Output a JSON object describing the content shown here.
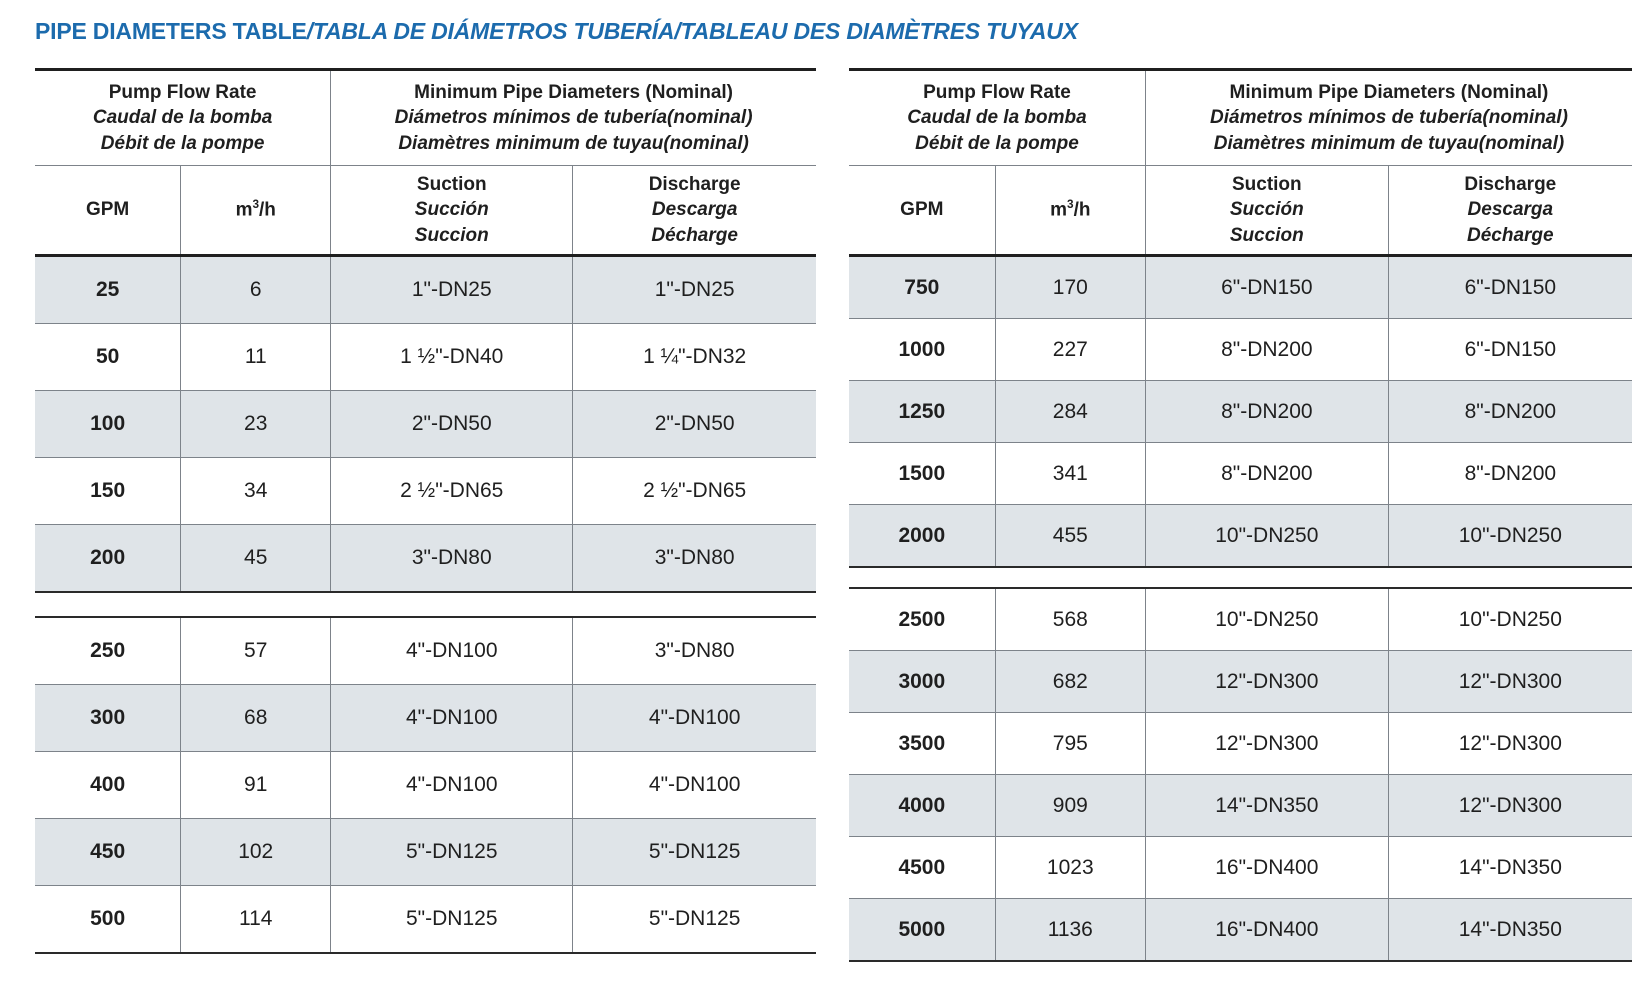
{
  "title": {
    "main": "PIPE DIAMETERS TABLE",
    "alt": "/TABLA DE DIÁMETROS TUBERÍA/TABLEAU DES DIAMÈTRES TUYAUX"
  },
  "colors": {
    "title_blue": "#1c6bad",
    "row_shade": "#dfe4e8",
    "grid_line": "#7d838a",
    "border_dark": "#1f1f1f",
    "text": "#1f1f1f"
  },
  "header": {
    "flow_en": "Pump Flow Rate",
    "flow_es": "Caudal de la bomba",
    "flow_fr": "Débit de la pompe",
    "diam_en": "Minimum Pipe Diameters (Nominal)",
    "diam_es": "Diámetros mínimos de tubería(nominal)",
    "diam_fr": "Diamètres minimum de tuyau(nominal)",
    "gpm": "GPM",
    "m3h": {
      "base": "m",
      "sup": "3",
      "rest": "/h"
    },
    "suction_en": "Suction",
    "suction_es": "Succión",
    "suction_fr": "Succion",
    "discharge_en": "Discharge",
    "discharge_es": "Descarga",
    "discharge_fr": "Décharge"
  },
  "left": {
    "s1": [
      {
        "gpm": "25",
        "m3h": "6",
        "suction": "1\"-DN25",
        "discharge": "1\"-DN25"
      },
      {
        "gpm": "50",
        "m3h": "11",
        "suction": "1 ½\"-DN40",
        "discharge": "1 ¼\"-DN32"
      },
      {
        "gpm": "100",
        "m3h": "23",
        "suction": "2\"-DN50",
        "discharge": "2\"-DN50"
      },
      {
        "gpm": "150",
        "m3h": "34",
        "suction": "2 ½\"-DN65",
        "discharge": "2 ½\"-DN65"
      },
      {
        "gpm": "200",
        "m3h": "45",
        "suction": "3\"-DN80",
        "discharge": "3\"-DN80"
      }
    ],
    "s2": [
      {
        "gpm": "250",
        "m3h": "57",
        "suction": "4\"-DN100",
        "discharge": "3\"-DN80"
      },
      {
        "gpm": "300",
        "m3h": "68",
        "suction": "4\"-DN100",
        "discharge": "4\"-DN100"
      },
      {
        "gpm": "400",
        "m3h": "91",
        "suction": "4\"-DN100",
        "discharge": "4\"-DN100"
      },
      {
        "gpm": "450",
        "m3h": "102",
        "suction": "5\"-DN125",
        "discharge": "5\"-DN125"
      },
      {
        "gpm": "500",
        "m3h": "114",
        "suction": "5\"-DN125",
        "discharge": "5\"-DN125"
      }
    ]
  },
  "right": {
    "s1": [
      {
        "gpm": "750",
        "m3h": "170",
        "suction": "6\"-DN150",
        "discharge": "6\"-DN150"
      },
      {
        "gpm": "1000",
        "m3h": "227",
        "suction": "8\"-DN200",
        "discharge": "6\"-DN150"
      },
      {
        "gpm": "1250",
        "m3h": "284",
        "suction": "8\"-DN200",
        "discharge": "8\"-DN200"
      },
      {
        "gpm": "1500",
        "m3h": "341",
        "suction": "8\"-DN200",
        "discharge": "8\"-DN200"
      },
      {
        "gpm": "2000",
        "m3h": "455",
        "suction": "10\"-DN250",
        "discharge": "10\"-DN250"
      }
    ],
    "s2": [
      {
        "gpm": "2500",
        "m3h": "568",
        "suction": "10\"-DN250",
        "discharge": "10\"-DN250"
      },
      {
        "gpm": "3000",
        "m3h": "682",
        "suction": "12\"-DN300",
        "discharge": "12\"-DN300"
      },
      {
        "gpm": "3500",
        "m3h": "795",
        "suction": "12\"-DN300",
        "discharge": "12\"-DN300"
      },
      {
        "gpm": "4000",
        "m3h": "909",
        "suction": "14\"-DN350",
        "discharge": "12\"-DN300"
      },
      {
        "gpm": "4500",
        "m3h": "1023",
        "suction": "16\"-DN400",
        "discharge": "14\"-DN350"
      },
      {
        "gpm": "5000",
        "m3h": "1136",
        "suction": "16\"-DN400",
        "discharge": "14\"-DN350"
      }
    ]
  }
}
